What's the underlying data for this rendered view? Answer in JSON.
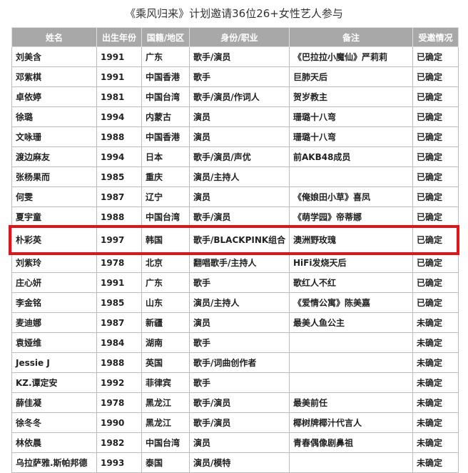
{
  "header": {
    "title": "《乘风归来》计划邀请36位26+女性艺人参与"
  },
  "table": {
    "columns": [
      "姓名",
      "出生年份",
      "国籍/地区",
      "身份/职业",
      "备注",
      "受邀情况"
    ],
    "highlighted_row": 9,
    "rows": [
      [
        "刘美含",
        1991,
        "广东",
        "歌手/演员",
        "《巴拉拉小魔仙》严莉莉",
        "已确定"
      ],
      [
        "邓紫棋",
        1991,
        "中国香港",
        "歌手",
        "巨肺天后",
        "已确定"
      ],
      [
        "卓依婷",
        1981,
        "中国台湾",
        "歌手/演员/作词人",
        "贺岁教主",
        "已确定"
      ],
      [
        "徐璐",
        1994,
        "内蒙古",
        "演员",
        "珊璐十八弯",
        "已确定"
      ],
      [
        "文咏珊",
        1988,
        "中国香港",
        "演员",
        "珊璐十八弯",
        "已确定"
      ],
      [
        "渡边麻友",
        1994,
        "日本",
        "歌手/演员/声优",
        "前AKB48成员",
        "已确定"
      ],
      [
        "张杨果而",
        1985,
        "重庆",
        "演员/主持人",
        null,
        "已确定"
      ],
      [
        "何雯",
        1987,
        "辽宁",
        "演员",
        "《俺娘田小草》喜凤",
        "已确定"
      ],
      [
        "夏宇童",
        1988,
        "中国台湾",
        "歌手/演员",
        "《萌学园》帝蒂娜",
        "已确定"
      ],
      [
        "朴彩英",
        1997,
        "韩国",
        "歌手/BLACKPINK组合",
        "澳洲野玫瑰",
        "已确定"
      ],
      [
        "刘紫玲",
        1978,
        "北京",
        "翻唱歌手/主持人",
        "HiFi发烧天后",
        "已确定"
      ],
      [
        "庄心妍",
        1991,
        "广东",
        "歌手",
        "歌红人不红",
        "已确定"
      ],
      [
        "李金铭",
        1985,
        "山东",
        "演员/主持人",
        "《爱情公寓》陈美嘉",
        "已确定"
      ],
      [
        "麦迪娜",
        1987,
        "新疆",
        "演员",
        "最美人鱼公主",
        "未确定"
      ],
      [
        "袁娅维",
        1984,
        "湖南",
        "歌手",
        null,
        "未确定"
      ],
      [
        "Jessie J",
        1988,
        "英国",
        "歌手/词曲创作者",
        null,
        "未确定"
      ],
      [
        "KZ.谭定安",
        1992,
        "菲律宾",
        "歌手",
        null,
        "未确定"
      ],
      [
        "薛佳凝",
        1978,
        "黑龙江",
        "歌手/演员",
        "最美前任",
        "未确定"
      ],
      [
        "徐冬冬",
        1990,
        "黑龙江",
        "歌手/演员",
        "椰树牌椰汁代言人",
        "未确定"
      ],
      [
        "林依晨",
        1982,
        "中国台湾",
        "演员",
        "青春偶像剧鼻祖",
        "未确定"
      ],
      [
        "乌拉萨雅.斯帕邦德",
        1993,
        "泰国",
        "演员/模特",
        null,
        "未确定"
      ]
    ]
  }
}
